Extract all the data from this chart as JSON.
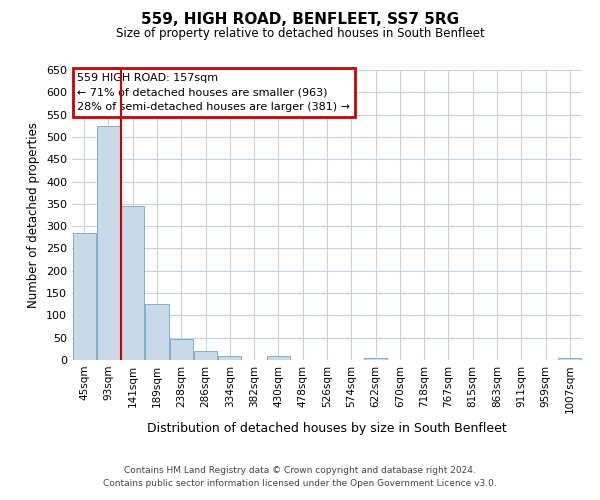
{
  "title": "559, HIGH ROAD, BENFLEET, SS7 5RG",
  "subtitle": "Size of property relative to detached houses in South Benfleet",
  "xlabel": "Distribution of detached houses by size in South Benfleet",
  "ylabel": "Number of detached properties",
  "categories": [
    "45sqm",
    "93sqm",
    "141sqm",
    "189sqm",
    "238sqm",
    "286sqm",
    "334sqm",
    "382sqm",
    "430sqm",
    "478sqm",
    "526sqm",
    "574sqm",
    "622sqm",
    "670sqm",
    "718sqm",
    "767sqm",
    "815sqm",
    "863sqm",
    "911sqm",
    "959sqm",
    "1007sqm"
  ],
  "values": [
    285,
    525,
    345,
    125,
    48,
    20,
    10,
    0,
    8,
    0,
    0,
    0,
    5,
    0,
    0,
    0,
    0,
    0,
    0,
    0,
    5
  ],
  "bar_color": "#c9d9e8",
  "bar_edge_color": "#7bafd4",
  "vline_color": "#cc0000",
  "vline_xindex": 2,
  "annotation_title": "559 HIGH ROAD: 157sqm",
  "annotation_line1": "← 71% of detached houses are smaller (963)",
  "annotation_line2": "28% of semi-detached houses are larger (381) →",
  "annotation_box_color": "#cc0000",
  "ylim": [
    0,
    650
  ],
  "yticks": [
    0,
    50,
    100,
    150,
    200,
    250,
    300,
    350,
    400,
    450,
    500,
    550,
    600,
    650
  ],
  "footnote1": "Contains HM Land Registry data © Crown copyright and database right 2024.",
  "footnote2": "Contains public sector information licensed under the Open Government Licence v3.0.",
  "background_color": "#ffffff",
  "grid_color": "#c8d4dc"
}
